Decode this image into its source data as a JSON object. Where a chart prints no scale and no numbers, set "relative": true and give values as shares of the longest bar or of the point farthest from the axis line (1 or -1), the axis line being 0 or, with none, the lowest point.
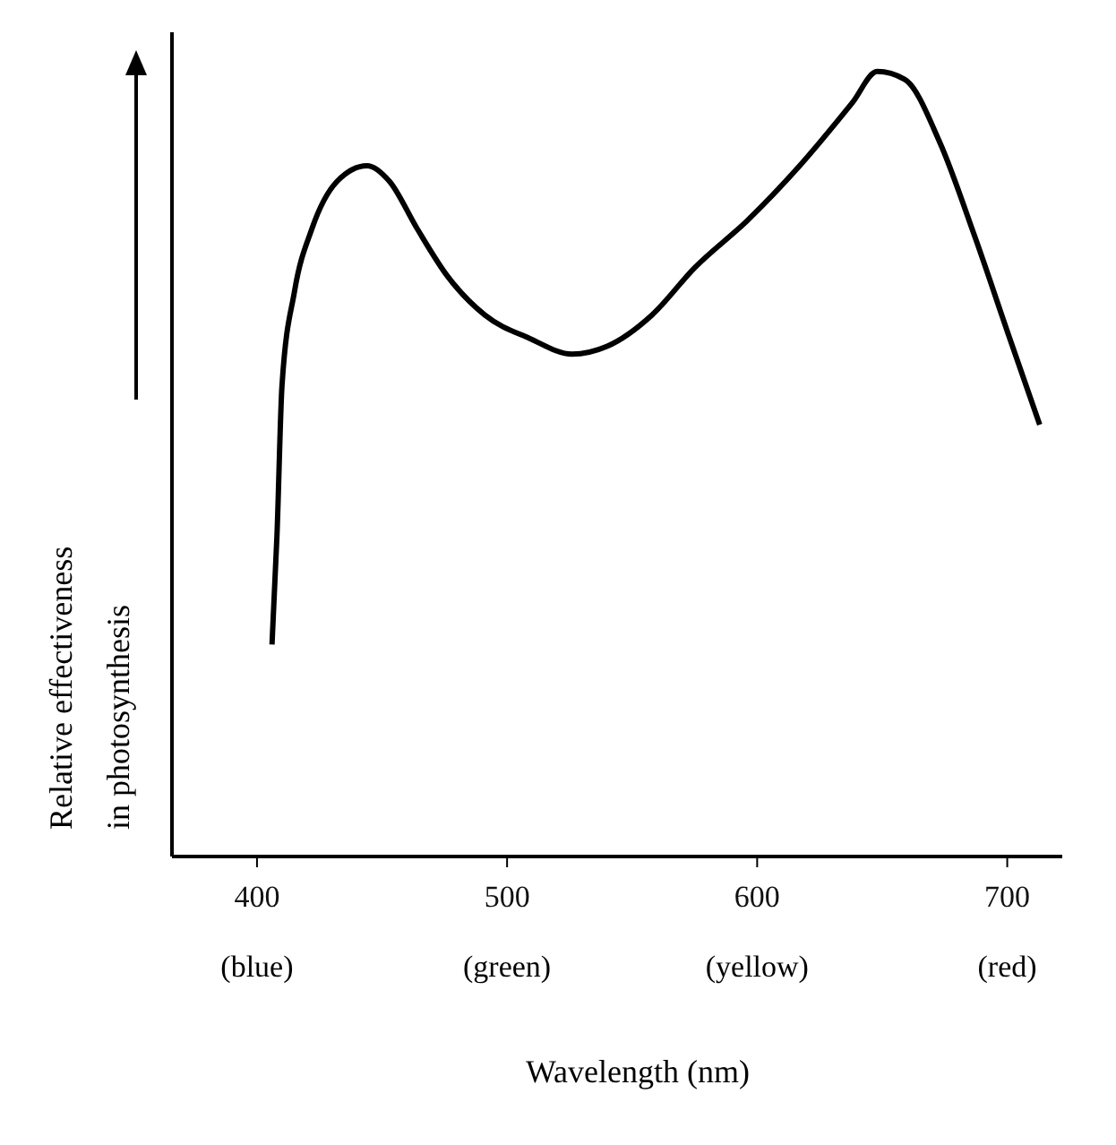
{
  "chart_data": {
    "type": "line",
    "relative": true,
    "xlabel": "Wavelength (nm)",
    "ylabel": "Relative effectiveness\nin photosynthesis",
    "xlim": [
      366,
      722
    ],
    "xticks": [
      400,
      500,
      600,
      700
    ],
    "annotations": [
      "(blue)",
      "(green)",
      "(yellow)",
      "(red)"
    ],
    "series": [
      {
        "color": "#000000",
        "x": [
          406,
          408,
          410,
          415,
          422,
          432,
          444,
          453,
          464,
          476,
          491,
          509,
          526,
          540,
          558,
          575,
          596,
          617,
          638,
          648,
          659,
          673,
          687,
          701,
          713
        ],
        "values": [
          0.27,
          0.41,
          0.6,
          0.72,
          0.8,
          0.86,
          0.88,
          0.86,
          0.8,
          0.74,
          0.69,
          0.66,
          0.64,
          0.65,
          0.69,
          0.75,
          0.81,
          0.88,
          0.96,
          1.0,
          0.99,
          0.91,
          0.79,
          0.66,
          0.55
        ]
      }
    ]
  }
}
